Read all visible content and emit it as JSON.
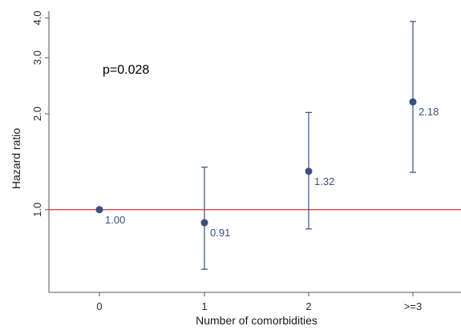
{
  "chart_data": {
    "type": "scatter",
    "title": "",
    "xlabel": "Number of comorbidities",
    "ylabel": "Hazard ratio",
    "y_scale": "log",
    "ylim": [
      0.55,
      4.2
    ],
    "y_ticks": [
      1.0,
      2.0,
      3.0,
      4.0
    ],
    "y_tick_labels": [
      "1.0",
      "2.0",
      "3.0",
      "4.0"
    ],
    "categories": [
      "0",
      "1",
      "2",
      ">=3"
    ],
    "points": [
      {
        "x": "0",
        "hr": 1.0,
        "lower": null,
        "upper": null,
        "label": "1.00"
      },
      {
        "x": "1",
        "hr": 0.91,
        "lower": 0.65,
        "upper": 1.36,
        "label": "0.91"
      },
      {
        "x": "2",
        "hr": 1.32,
        "lower": 0.87,
        "upper": 2.02,
        "label": "1.32"
      },
      {
        "x": ">=3",
        "hr": 2.18,
        "lower": 1.31,
        "upper": 3.9,
        "label": "2.18"
      }
    ],
    "reference_line": 1.0,
    "annotation": "p=0.028",
    "grid": false,
    "colors": {
      "point": "#3b4f7f",
      "label": "#3b4f7f",
      "reference": "#e0303a",
      "axis": "#555555"
    }
  }
}
